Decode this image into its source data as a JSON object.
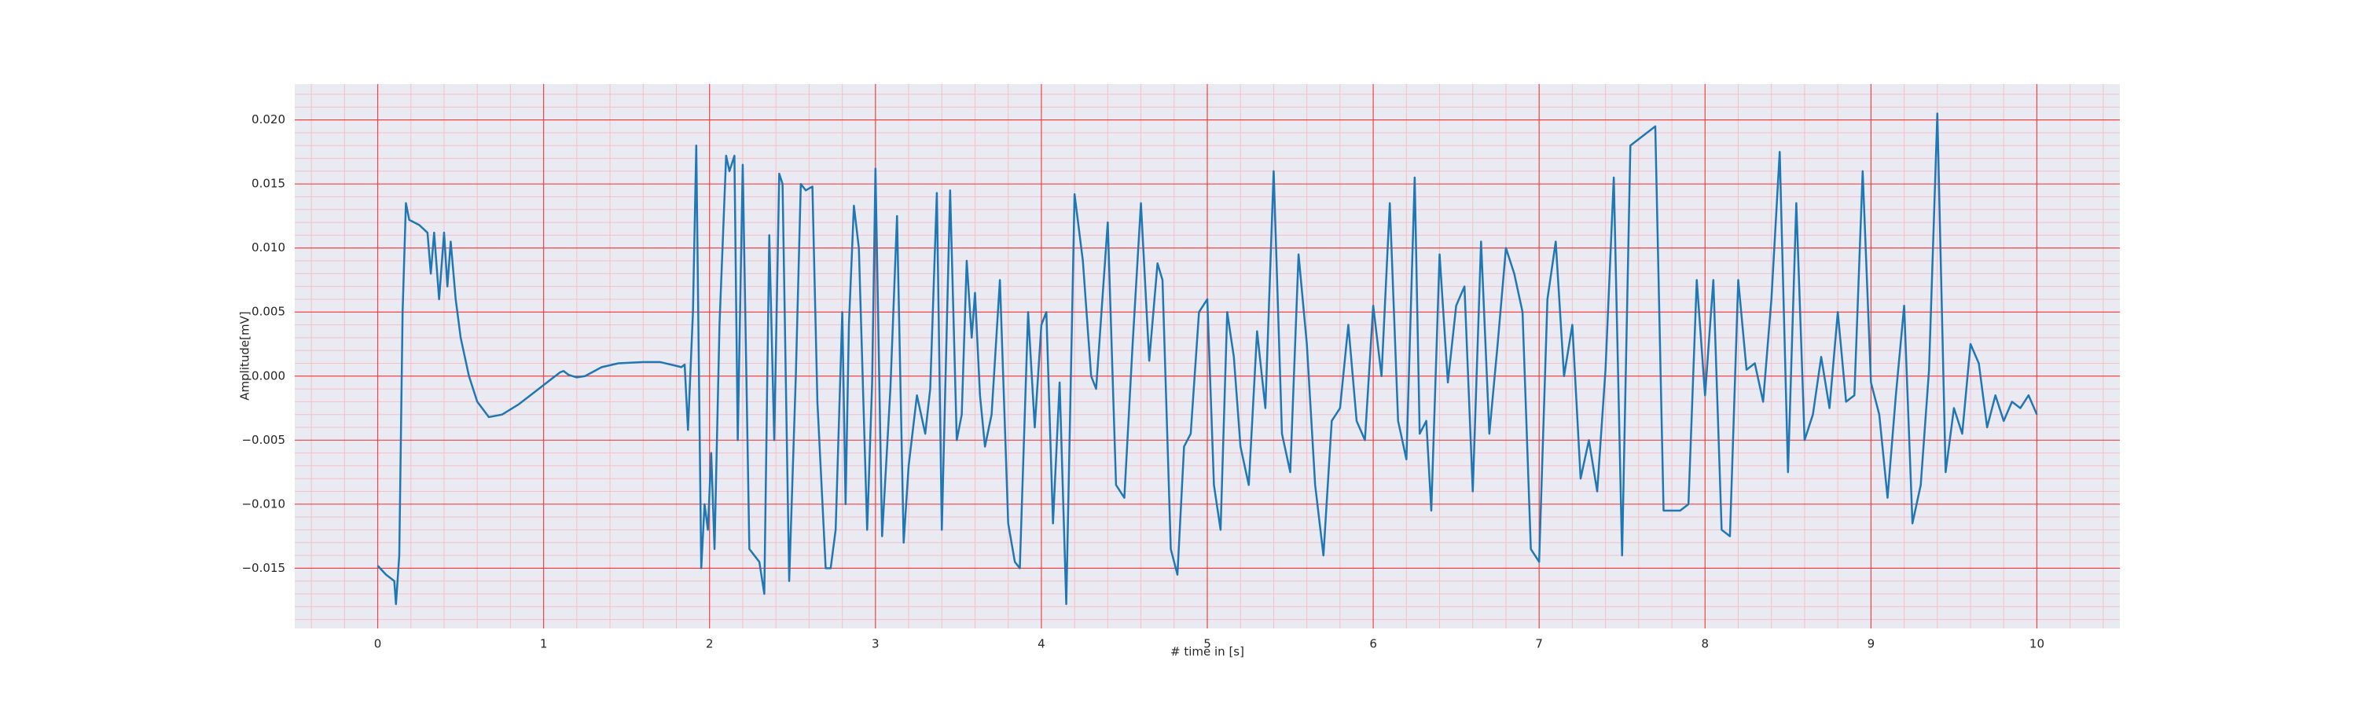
{
  "chart_data": {
    "type": "line",
    "xlabel": "# time in [s]",
    "ylabel": "Amplitude[mV]",
    "color": "#1f77b4",
    "xlim": [
      -0.5,
      10.5
    ],
    "ylim": [
      -0.0197,
      0.0228
    ],
    "xticks": [
      0,
      1,
      2,
      3,
      4,
      5,
      6,
      7,
      8,
      9,
      10
    ],
    "yticks": [
      {
        "value": -0.015,
        "label": "−0.015"
      },
      {
        "value": -0.01,
        "label": "−0.010"
      },
      {
        "value": -0.005,
        "label": "−0.005"
      },
      {
        "value": 0,
        "label": "0.000"
      },
      {
        "value": 0.005,
        "label": "0.005"
      },
      {
        "value": 0.01,
        "label": "0.010"
      },
      {
        "value": 0.015,
        "label": "0.015"
      },
      {
        "value": 0.02,
        "label": "0.020"
      }
    ],
    "grid": true,
    "minor_grid": true,
    "minor_divisions": 5,
    "x": [
      0,
      0.05,
      0.1,
      0.11,
      0.13,
      0.15,
      0.17,
      0.19,
      0.25,
      0.3,
      0.32,
      0.34,
      0.37,
      0.4,
      0.42,
      0.44,
      0.47,
      0.5,
      0.55,
      0.6,
      0.67,
      0.75,
      0.85,
      0.95,
      1.05,
      1.1,
      1.12,
      1.15,
      1.2,
      1.25,
      1.35,
      1.45,
      1.6,
      1.7,
      1.8,
      1.83,
      1.85,
      1.87,
      1.9,
      1.92,
      1.95,
      1.97,
      1.99,
      2.01,
      2.03,
      2.06,
      2.1,
      2.12,
      2.15,
      2.17,
      2.2,
      2.24,
      2.27,
      2.3,
      2.33,
      2.36,
      2.39,
      2.42,
      2.44,
      2.48,
      2.52,
      2.55,
      2.58,
      2.62,
      2.65,
      2.7,
      2.73,
      2.76,
      2.8,
      2.82,
      2.84,
      2.87,
      2.9,
      2.95,
      2.98,
      3.0,
      3.04,
      3.09,
      3.13,
      3.17,
      3.2,
      3.25,
      3.3,
      3.33,
      3.37,
      3.4,
      3.45,
      3.49,
      3.52,
      3.55,
      3.58,
      3.6,
      3.63,
      3.66,
      3.7,
      3.75,
      3.8,
      3.84,
      3.87,
      3.92,
      3.96,
      4.0,
      4.03,
      4.07,
      4.11,
      4.15,
      4.2,
      4.25,
      4.3,
      4.33,
      4.4,
      4.45,
      4.5,
      4.55,
      4.6,
      4.65,
      4.7,
      4.73,
      4.78,
      4.82,
      4.86,
      4.9,
      4.95,
      5.0,
      5.04,
      5.08,
      5.12,
      5.16,
      5.2,
      5.25,
      5.3,
      5.35,
      5.4,
      5.45,
      5.5,
      5.55,
      5.6,
      5.65,
      5.7,
      5.75,
      5.8,
      5.85,
      5.9,
      5.95,
      6.0,
      6.05,
      6.1,
      6.15,
      6.2,
      6.25,
      6.28,
      6.32,
      6.35,
      6.4,
      6.45,
      6.5,
      6.55,
      6.6,
      6.65,
      6.7,
      6.75,
      6.8,
      6.85,
      6.9,
      6.95,
      7.0,
      7.05,
      7.1,
      7.15,
      7.2,
      7.25,
      7.3,
      7.35,
      7.4,
      7.45,
      7.5,
      7.55,
      7.6,
      7.65,
      7.7,
      7.75,
      7.8,
      7.85,
      7.9,
      7.95,
      8.0,
      8.05,
      8.1,
      8.15,
      8.2,
      8.25,
      8.3,
      8.35,
      8.4,
      8.45,
      8.5,
      8.55,
      8.6,
      8.65,
      8.7,
      8.75,
      8.8,
      8.85,
      8.9,
      8.95,
      9.0,
      9.05,
      9.1,
      9.15,
      9.2,
      9.25,
      9.3,
      9.35,
      9.4,
      9.45,
      9.5,
      9.55,
      9.6,
      9.65,
      9.7,
      9.75,
      9.8,
      9.85,
      9.9,
      9.95,
      10.0
    ],
    "values": [
      -0.0148,
      -0.0155,
      -0.016,
      -0.0178,
      -0.014,
      0.005,
      0.0135,
      0.0122,
      0.0118,
      0.0112,
      0.008,
      0.0112,
      0.006,
      0.0112,
      0.007,
      0.0105,
      0.006,
      0.003,
      0.0,
      -0.002,
      -0.0032,
      -0.003,
      -0.0022,
      -0.0012,
      -0.0002,
      0.0003,
      0.0004,
      0.0001,
      -0.0001,
      0.0,
      0.0007,
      0.001,
      0.0011,
      0.0011,
      0.0008,
      0.0007,
      0.0009,
      -0.0042,
      0.005,
      0.018,
      -0.015,
      -0.01,
      -0.012,
      -0.006,
      -0.0135,
      0.004,
      0.0172,
      0.016,
      0.0172,
      -0.005,
      0.0165,
      -0.0135,
      -0.014,
      -0.0145,
      -0.017,
      0.011,
      -0.005,
      0.0158,
      0.015,
      -0.016,
      0.0,
      0.015,
      0.0145,
      0.0148,
      -0.002,
      -0.015,
      -0.015,
      -0.012,
      0.005,
      -0.01,
      0.004,
      0.0133,
      0.01,
      -0.012,
      -0.0005,
      0.0162,
      -0.0125,
      -0.001,
      0.0125,
      -0.013,
      -0.007,
      -0.0015,
      -0.0045,
      -0.001,
      0.0143,
      -0.012,
      0.0145,
      -0.005,
      -0.003,
      0.009,
      0.003,
      0.0065,
      -0.0015,
      -0.0055,
      -0.003,
      0.0075,
      -0.0115,
      -0.0145,
      -0.015,
      0.005,
      -0.004,
      0.004,
      0.005,
      -0.0115,
      -0.0005,
      -0.0178,
      0.0142,
      0.009,
      0.0,
      -0.001,
      0.012,
      -0.0085,
      -0.0095,
      0.0025,
      0.0135,
      0.0012,
      0.0088,
      0.0075,
      -0.0135,
      -0.0155,
      -0.0055,
      -0.0045,
      0.005,
      0.006,
      -0.0085,
      -0.012,
      0.005,
      0.0015,
      -0.0055,
      -0.0085,
      0.0035,
      -0.0025,
      0.016,
      -0.0045,
      -0.0075,
      0.0095,
      0.0025,
      -0.0085,
      -0.014,
      -0.0035,
      -0.0025,
      0.004,
      -0.0035,
      -0.005,
      0.0055,
      0.0,
      0.0135,
      -0.0035,
      -0.0065,
      0.0155,
      -0.0045,
      -0.0035,
      -0.0105,
      0.0095,
      -0.0005,
      0.0055,
      0.007,
      -0.009,
      0.0105,
      -0.0045,
      0.0025,
      0.01,
      0.008,
      0.005,
      -0.0135,
      -0.0145,
      0.006,
      0.0105,
      0.0,
      0.004,
      -0.008,
      -0.005,
      -0.009,
      0.0005,
      0.0155,
      -0.014,
      0.018,
      0.0185,
      0.019,
      0.0195,
      -0.0105,
      -0.0105,
      -0.0105,
      -0.01,
      0.0075,
      -0.0015,
      0.0075,
      -0.012,
      -0.0125,
      0.0075,
      0.0005,
      0.001,
      -0.002,
      0.006,
      0.0175,
      -0.0075,
      0.0135,
      -0.005,
      -0.003,
      0.0015,
      -0.0025,
      0.005,
      -0.002,
      -0.0015,
      0.016,
      -0.0005,
      -0.003,
      -0.0095,
      -0.0015,
      0.0055,
      -0.0115,
      -0.0085,
      0.0005,
      0.0205,
      -0.0075,
      -0.0025,
      -0.0045,
      0.0025,
      0.001,
      -0.004,
      -0.0015,
      -0.0035,
      -0.002,
      -0.0025,
      -0.0015,
      -0.003
    ]
  }
}
